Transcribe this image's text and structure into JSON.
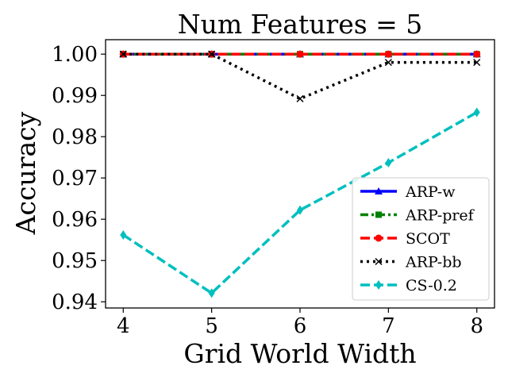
{
  "chart_data": {
    "type": "line",
    "title": "Num Features = 5",
    "xlabel": "Grid World Width",
    "ylabel": "Accuracy",
    "x": [
      4,
      5,
      6,
      7,
      8
    ],
    "xlim": [
      3.8,
      8.2
    ],
    "ylim": [
      0.9385,
      1.0035
    ],
    "xticks": [
      "4",
      "5",
      "6",
      "7",
      "8"
    ],
    "yticks": [
      "0.94",
      "0.95",
      "0.96",
      "0.97",
      "0.98",
      "0.99",
      "1.00"
    ],
    "grid": false,
    "legend_position": "lower-right",
    "series": [
      {
        "name": "ARP-w",
        "values": [
          1.0,
          1.0,
          1.0,
          1.0,
          1.0
        ],
        "color": "#0000ff",
        "line_style": "solid",
        "marker": "triangle"
      },
      {
        "name": "ARP-pref",
        "values": [
          1.0,
          1.0,
          1.0,
          1.0,
          1.0
        ],
        "color": "#008000",
        "line_style": "dashdot",
        "marker": "square"
      },
      {
        "name": "SCOT",
        "values": [
          1.0,
          1.0,
          1.0,
          1.0,
          1.0
        ],
        "color": "#ff0000",
        "line_style": "dashed",
        "marker": "circle"
      },
      {
        "name": "ARP-bb",
        "values": [
          1.0,
          1.0,
          0.9892,
          0.998,
          0.998
        ],
        "color": "#000000",
        "line_style": "dotted",
        "marker": "x"
      },
      {
        "name": "CS-0.2",
        "values": [
          0.9562,
          0.9421,
          0.9622,
          0.9737,
          0.9859
        ],
        "color": "#00bfbf",
        "line_style": "dashed",
        "marker": "diamond"
      }
    ]
  }
}
